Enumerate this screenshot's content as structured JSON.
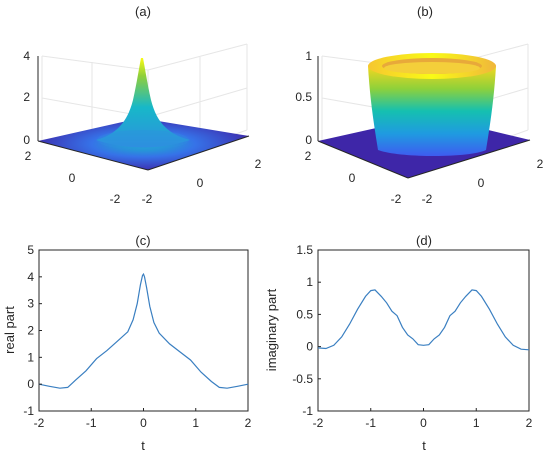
{
  "panels": {
    "a": {
      "title": "(a)"
    },
    "b": {
      "title": "(b)"
    }
  },
  "colors": {
    "line": "#3a7fc1",
    "axis": "#262626",
    "grid": "#e6e6e6",
    "surface_low": "#3e26a8",
    "surface_mid": "#17b8c8",
    "surface_high": "#f9fb15"
  },
  "chart_data": [
    {
      "type": "surface",
      "panel": "(a)",
      "title": "(a)",
      "x_ticks": [
        "-2",
        "0",
        "2"
      ],
      "y_ticks": [
        "-2",
        "0",
        "2"
      ],
      "z_ticks": [
        "0",
        "2",
        "4"
      ],
      "zlim": [
        0,
        4
      ],
      "shape": "sharp central peak reaching about 4 at the origin, flat near 0 elsewhere"
    },
    {
      "type": "surface",
      "panel": "(b)",
      "title": "(b)",
      "x_ticks": [
        "-2",
        "0",
        "2"
      ],
      "y_ticks": [
        "-2",
        "0",
        "2"
      ],
      "z_ticks": [
        "0",
        "0.5",
        "1"
      ],
      "zlim": [
        0,
        1
      ],
      "shape": "flat-topped plateau of height about 0.9 with a ring rim, near 0 outside"
    },
    {
      "type": "line",
      "panel": "(c)",
      "title": "(c)",
      "xlabel": "t",
      "ylabel": "real part",
      "xlim": [
        -2,
        2
      ],
      "ylim": [
        -1,
        5
      ],
      "x_ticks": [
        "-2",
        "-1",
        "0",
        "1",
        "2"
      ],
      "y_ticks": [
        "-1",
        "0",
        "1",
        "2",
        "3",
        "4",
        "5"
      ],
      "series": [
        {
          "x": [
            -2,
            -1.8,
            -1.6,
            -1.45,
            -1.3,
            -1.1,
            -0.9,
            -0.7,
            -0.5,
            -0.3,
            -0.2,
            -0.12,
            -0.06,
            -0.02,
            0,
            0.02,
            0.06,
            0.12,
            0.2,
            0.3,
            0.5,
            0.7,
            0.9,
            1.1,
            1.3,
            1.45,
            1.6,
            1.8,
            2
          ],
          "y": [
            0,
            -0.08,
            -0.15,
            -0.12,
            0.15,
            0.5,
            0.95,
            1.25,
            1.6,
            1.95,
            2.4,
            3.0,
            3.7,
            4.05,
            4.1,
            4.0,
            3.6,
            2.9,
            2.3,
            1.9,
            1.5,
            1.2,
            0.9,
            0.45,
            0.1,
            -0.12,
            -0.15,
            -0.08,
            0
          ]
        }
      ]
    },
    {
      "type": "line",
      "panel": "(d)",
      "title": "(d)",
      "xlabel": "t",
      "ylabel": "imaginary part",
      "xlim": [
        -2,
        2
      ],
      "ylim": [
        -1,
        1.5
      ],
      "x_ticks": [
        "-2",
        "-1",
        "0",
        "1",
        "2"
      ],
      "y_ticks": [
        "-1",
        "-0.5",
        "0",
        "0.5",
        "1",
        "1.5"
      ],
      "series": [
        {
          "x": [
            -2,
            -1.85,
            -1.7,
            -1.55,
            -1.4,
            -1.25,
            -1.1,
            -1.0,
            -0.92,
            -0.8,
            -0.7,
            -0.6,
            -0.5,
            -0.4,
            -0.3,
            -0.2,
            -0.1,
            0,
            0.1,
            0.2,
            0.3,
            0.4,
            0.5,
            0.6,
            0.7,
            0.8,
            0.92,
            1.0,
            1.1,
            1.25,
            1.4,
            1.55,
            1.7,
            1.85,
            2
          ],
          "y": [
            -0.02,
            -0.03,
            0.02,
            0.15,
            0.35,
            0.58,
            0.78,
            0.87,
            0.88,
            0.78,
            0.68,
            0.55,
            0.48,
            0.3,
            0.18,
            0.12,
            0.03,
            0.02,
            0.03,
            0.12,
            0.18,
            0.3,
            0.48,
            0.55,
            0.68,
            0.78,
            0.88,
            0.87,
            0.78,
            0.58,
            0.35,
            0.15,
            0.02,
            -0.04,
            -0.05
          ]
        }
      ]
    }
  ]
}
